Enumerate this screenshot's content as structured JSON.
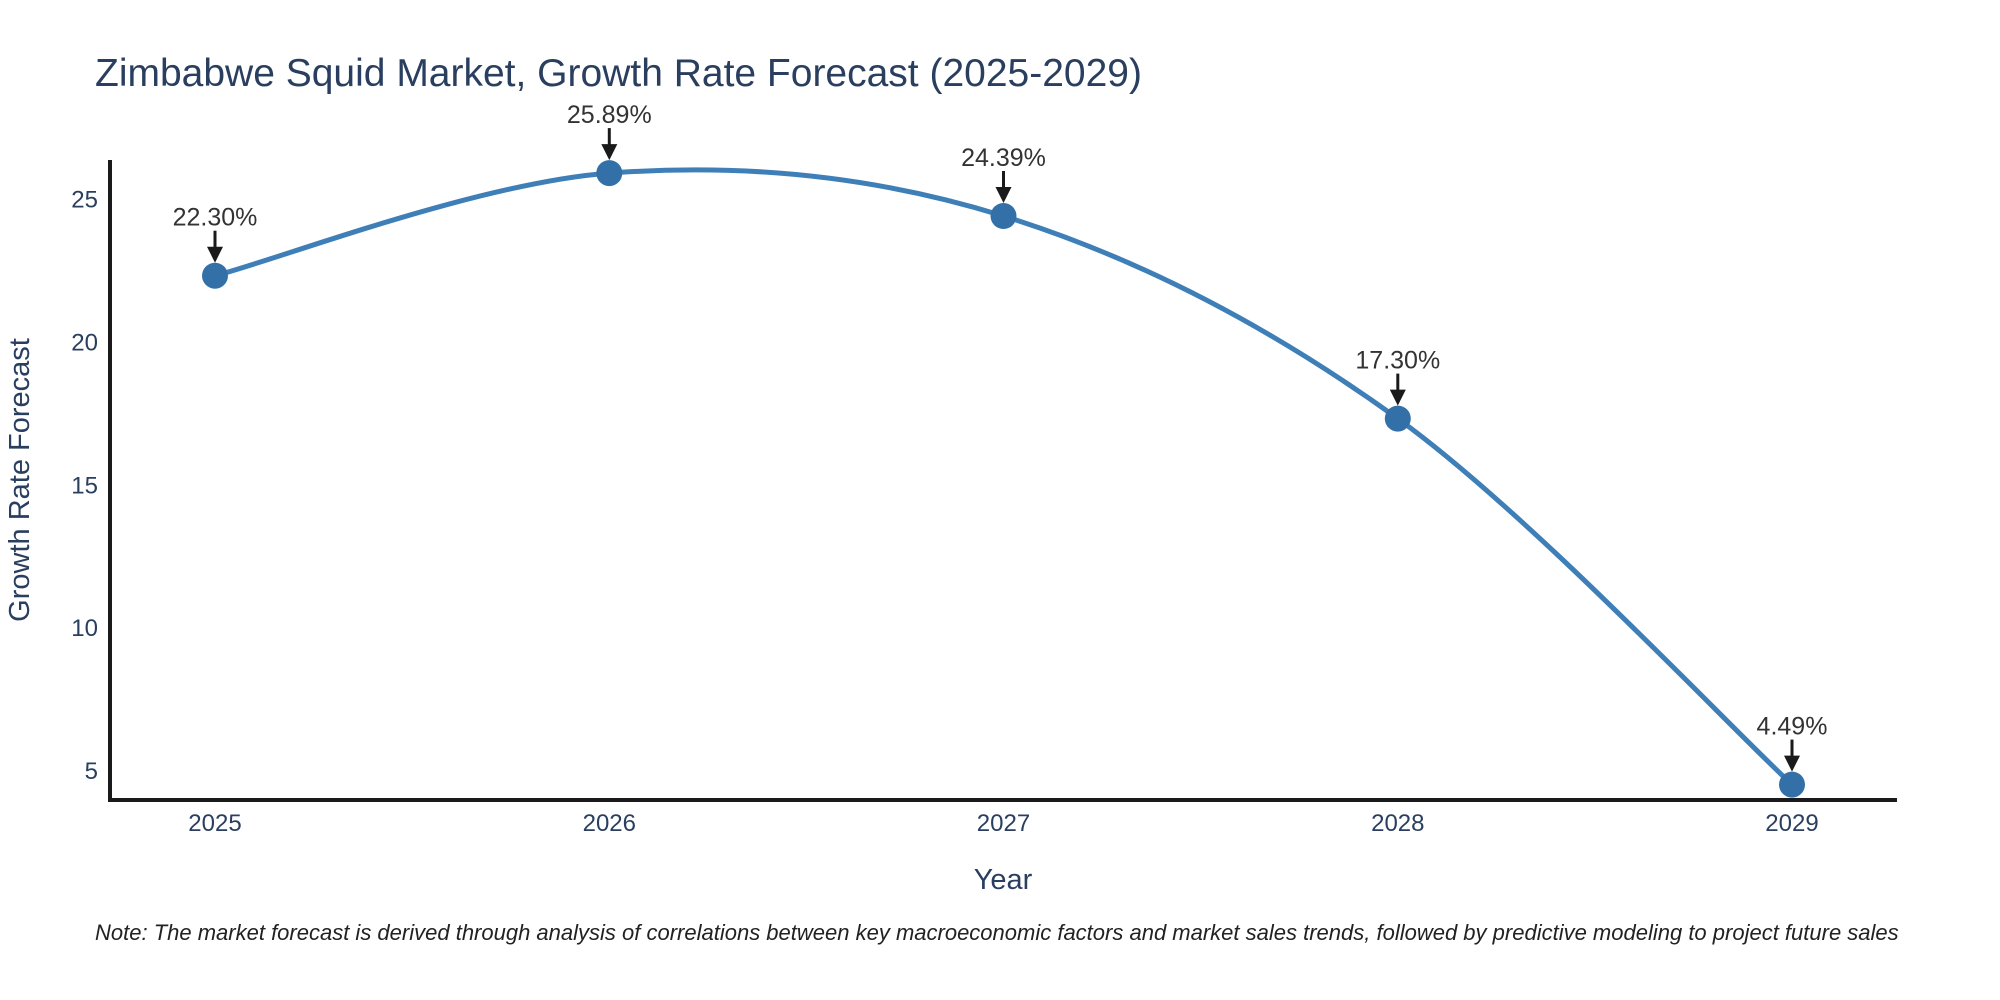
{
  "title": "Zimbabwe Squid Market, Growth Rate Forecast (2025-2029)",
  "note": "Note: The market forecast is derived through analysis of correlations between key macroeconomic factors and market sales trends, followed by predictive modeling to project future sales",
  "chart_data": {
    "type": "line",
    "title": "Zimbabwe Squid Market, Growth Rate Forecast (2025-2029)",
    "x": [
      2025,
      2026,
      2027,
      2028,
      2029
    ],
    "series": [
      {
        "name": "Growth Rate Forecast",
        "values": [
          22.3,
          25.89,
          24.39,
          17.3,
          4.49
        ]
      }
    ],
    "point_labels": [
      "22.30%",
      "25.89%",
      "24.39%",
      "17.30%",
      "4.49%"
    ],
    "xlabel": "Year",
    "ylabel": "Growth Rate Forecast",
    "xticks": [
      "2025",
      "2026",
      "2027",
      "2028",
      "2029"
    ],
    "yticks": [
      5,
      10,
      15,
      20,
      25
    ],
    "ylim": [
      3.95,
      26.35
    ],
    "line_shape": "spline",
    "grid": false,
    "legend_position": "none",
    "line_color": "#3f7fb8",
    "marker_color": "#3470a8",
    "axis_color": "#1a1a1a",
    "arrow_color": "#1a1a1a",
    "background": "#ffffff"
  }
}
